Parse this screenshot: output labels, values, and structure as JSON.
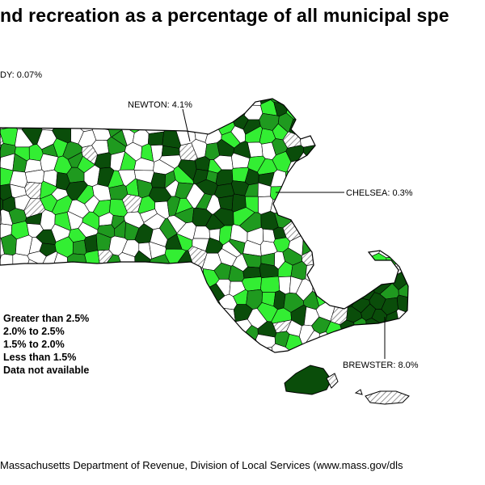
{
  "title": "nd recreation as a percentage of all municipal spe",
  "callouts": {
    "left": "DY: 0.07%",
    "newton": "NEWTON: 4.1%",
    "chelsea": "CHELSEA: 0.3%",
    "brewster": "BREWSTER: 8.0%"
  },
  "legend": {
    "items": [
      {
        "label": "Greater than 2.5%",
        "color": "#0a4d0a"
      },
      {
        "label": "2.0% to 2.5%",
        "color": "#1f9a1f"
      },
      {
        "label": "1.5% to 2.0%",
        "color": "#33ee33"
      },
      {
        "label": "Less than 1.5%",
        "color": "#ffffff"
      },
      {
        "label": "Data not available",
        "color": "hatched"
      }
    ]
  },
  "source": "Massachusetts Department of Revenue, Division of Local Services (www.mass.gov/dls",
  "colors": {
    "dark_green": "#0a4d0a",
    "mid_green": "#1f9a1f",
    "bright_green": "#33ee33",
    "white": "#ffffff",
    "hatched": "#bbbbbb"
  }
}
